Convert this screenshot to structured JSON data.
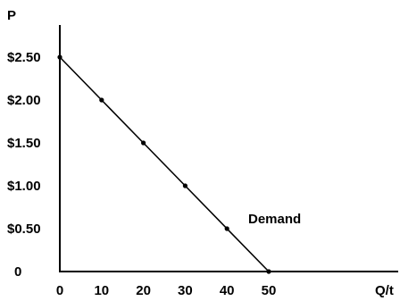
{
  "chart_data": {
    "type": "line",
    "title": "",
    "xlabel": "Q/t",
    "ylabel": "P",
    "xlim": [
      0,
      50
    ],
    "ylim": [
      0,
      2.5
    ],
    "grid": false,
    "x_ticks": [
      0,
      10,
      20,
      30,
      40,
      50
    ],
    "x_tick_labels": [
      "0",
      "10",
      "20",
      "30",
      "40",
      "50"
    ],
    "y_ticks": [
      0,
      0.5,
      1.0,
      1.5,
      2.0,
      2.5
    ],
    "y_tick_labels": [
      "0",
      "$0.50",
      "$1.00",
      "$1.50",
      "$2.00",
      "$2.50"
    ],
    "series": [
      {
        "name": "Demand",
        "x": [
          0,
          10,
          20,
          30,
          40,
          50
        ],
        "y": [
          2.5,
          2.0,
          1.5,
          1.0,
          0.5,
          0
        ]
      }
    ]
  }
}
